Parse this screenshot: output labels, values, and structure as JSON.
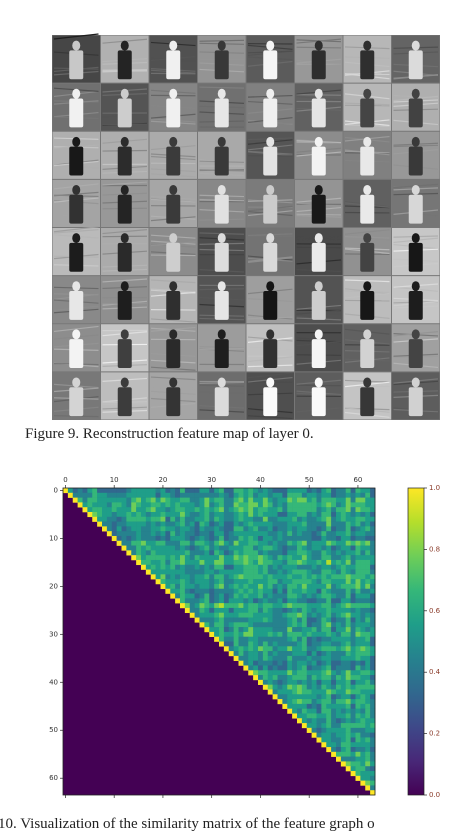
{
  "figure9": {
    "caption": "Figure 9.    Reconstruction feature map of layer 0."
  },
  "figure10": {
    "caption": "10.  Visualization of the similarity matrix of the feature graph o",
    "xlim": [
      -0.5,
      63.5
    ],
    "ylim": [
      -0.5,
      63.5
    ],
    "xticks": [
      0,
      10,
      20,
      30,
      40,
      50,
      60
    ],
    "yticks": [
      0,
      10,
      20,
      30,
      40,
      50,
      60
    ],
    "clim": [
      0,
      1
    ],
    "cticks": [
      {
        "value": 0,
        "label": "0.0"
      },
      {
        "value": 0.2,
        "label": "0.2"
      },
      {
        "value": 0.4,
        "label": "0.4"
      },
      {
        "value": 0.6,
        "label": "0.6"
      },
      {
        "value": 0.8,
        "label": "0.8"
      },
      {
        "value": 1,
        "label": "1.0"
      }
    ]
  }
}
